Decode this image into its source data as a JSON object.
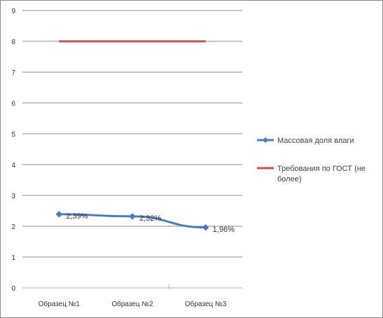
{
  "chart_data": {
    "type": "line",
    "categories": [
      "Образец №1",
      "Образец №2",
      "Образец №3"
    ],
    "y_ticks": [
      "0",
      "1",
      "2",
      "3",
      "4",
      "5",
      "6",
      "7",
      "8",
      "9"
    ],
    "ylim": [
      0,
      9
    ],
    "grid": true,
    "legend_position": "right",
    "series": [
      {
        "name": "Массовая доля влаги",
        "values": [
          2.39,
          2.32,
          1.96
        ],
        "labels": [
          "2,39%",
          "2,32%",
          "1,96%"
        ],
        "color": "#4a7ebb",
        "marker": "diamond"
      },
      {
        "name": "Требования по ГОСТ (не более)",
        "name_lines": [
          "Требования по ГОСТ (не",
          "более)"
        ],
        "values": [
          8,
          8,
          8
        ],
        "color": "#c0504d",
        "marker": "none"
      }
    ]
  }
}
